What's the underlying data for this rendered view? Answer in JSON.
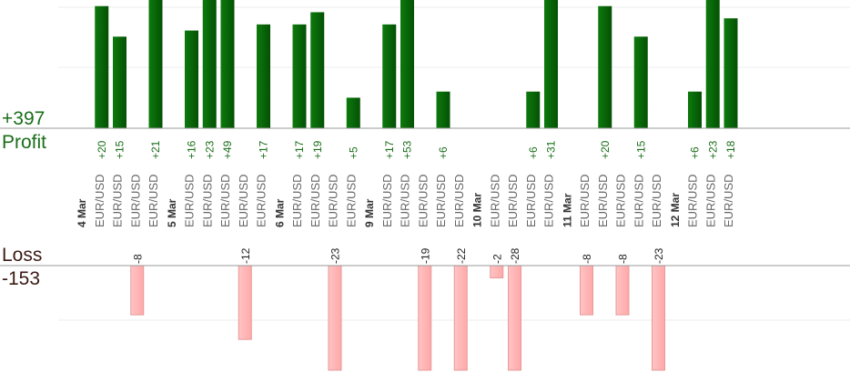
{
  "summary": {
    "total_profit": "+397",
    "profit_label": "Profit",
    "loss_label": "Loss",
    "total_loss": "-153"
  },
  "colors": {
    "profit_bar": "#0b6b0b",
    "profit_bar_dark": "#045104",
    "loss_bar": "#ffb6b6",
    "loss_bar_border": "#e79a9a",
    "profit_text": "#1a6e1a",
    "loss_text": "#222222",
    "axis_line": "#999999",
    "grid_line": "#eeeeee",
    "label_text": "#666666",
    "date_text": "#333333"
  },
  "chart_data": {
    "type": "bar",
    "description_axis": "per-trade profit and loss",
    "ylim_profit": [
      0,
      21
    ],
    "ylim_loss": [
      -17,
      0
    ],
    "trades": [
      {
        "label": "4 Mar",
        "is_date": true
      },
      {
        "label": "EUR/USD",
        "value": 20
      },
      {
        "label": "EUR/USD",
        "value": 15
      },
      {
        "label": "EUR/USD",
        "value": -8
      },
      {
        "label": "EUR/USD",
        "value": 21
      },
      {
        "label": "5 Mar",
        "is_date": true
      },
      {
        "label": "EUR/USD",
        "value": 16
      },
      {
        "label": "EUR/USD",
        "value": 23
      },
      {
        "label": "EUR/USD",
        "value": 49
      },
      {
        "label": "EUR/USD",
        "value": -12
      },
      {
        "label": "EUR/USD",
        "value": 17
      },
      {
        "label": "6 Mar",
        "is_date": true
      },
      {
        "label": "EUR/USD",
        "value": 17
      },
      {
        "label": "EUR/USD",
        "value": 19
      },
      {
        "label": "EUR/USD",
        "value": -23
      },
      {
        "label": "EUR/USD",
        "value": 5
      },
      {
        "label": "9 Mar",
        "is_date": true
      },
      {
        "label": "EUR/USD",
        "value": 17
      },
      {
        "label": "EUR/USD",
        "value": 53
      },
      {
        "label": "EUR/USD",
        "value": -19
      },
      {
        "label": "EUR/USD",
        "value": 6
      },
      {
        "label": "EUR/USD",
        "value": -22
      },
      {
        "label": "10 Mar",
        "is_date": true
      },
      {
        "label": "EUR/USD",
        "value": -2
      },
      {
        "label": "EUR/USD",
        "value": -28
      },
      {
        "label": "EUR/USD",
        "value": 6
      },
      {
        "label": "EUR/USD",
        "value": 31
      },
      {
        "label": "11 Mar",
        "is_date": true
      },
      {
        "label": "EUR/USD",
        "value": -8
      },
      {
        "label": "EUR/USD",
        "value": 20
      },
      {
        "label": "EUR/USD",
        "value": -8
      },
      {
        "label": "EUR/USD",
        "value": 15
      },
      {
        "label": "EUR/USD",
        "value": -23
      },
      {
        "label": "12 Mar",
        "is_date": true
      },
      {
        "label": "EUR/USD",
        "value": 6
      },
      {
        "label": "EUR/USD",
        "value": 23
      },
      {
        "label": "EUR/USD",
        "value": 18
      }
    ],
    "grid": true
  }
}
